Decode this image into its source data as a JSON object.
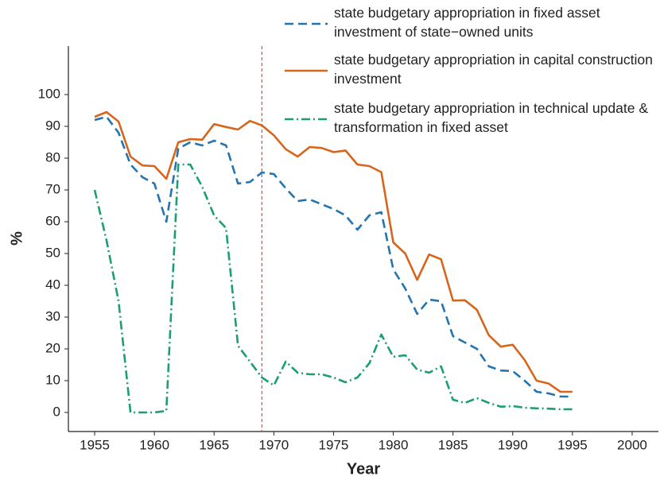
{
  "chart_data": {
    "type": "line",
    "xlabel": "Year",
    "ylabel": "%",
    "x": [
      1955,
      1956,
      1957,
      1958,
      1959,
      1960,
      1961,
      1962,
      1963,
      1964,
      1965,
      1966,
      1967,
      1968,
      1969,
      1970,
      1971,
      1972,
      1973,
      1974,
      1975,
      1976,
      1977,
      1978,
      1979,
      1980,
      1981,
      1982,
      1983,
      1984,
      1985,
      1986,
      1987,
      1988,
      1989,
      1990,
      1991,
      1992,
      1993,
      1994,
      1995
    ],
    "series": [
      {
        "name": "state budgetary appropriation in fixed asset investment of state−owned units",
        "color": "#2474b0",
        "dash": "dashed",
        "values": [
          92,
          93,
          88,
          78,
          74,
          72,
          60,
          83,
          85,
          84,
          85.5,
          84,
          72,
          72.5,
          75.5,
          75,
          70.5,
          66.5,
          67,
          65.5,
          64,
          62,
          57.5,
          62,
          63,
          45,
          39,
          31,
          35.5,
          35,
          24,
          22,
          20,
          14.5,
          13.2,
          13,
          10,
          6.5,
          6,
          5,
          5
        ]
      },
      {
        "name": "state budgetary appropriation in capital construction investment",
        "color": "#d7661c",
        "dash": "solid",
        "values": [
          93,
          94.5,
          91.5,
          80.5,
          77.7,
          77.5,
          73.5,
          85,
          86,
          85.8,
          90.7,
          89.8,
          89,
          91.7,
          90.3,
          87.2,
          82.8,
          80.5,
          83.5,
          83.2,
          81.9,
          82.4,
          78,
          77.5,
          75.6,
          53.5,
          50,
          41.7,
          49.7,
          48.2,
          35.2,
          35.3,
          32.3,
          24.3,
          20.7,
          21.3,
          16.5,
          10,
          9.1,
          6.5,
          6.5
        ]
      },
      {
        "name": "state budgetary appropriation in technical update & transformation in fixed asset",
        "color": "#1b9e77",
        "dash": "dashdot",
        "values": [
          70,
          54,
          35,
          0,
          0,
          0,
          0.5,
          78,
          78,
          71,
          62,
          58,
          21,
          16,
          11,
          8.5,
          16,
          12.5,
          12,
          12,
          11,
          9.5,
          11,
          15.5,
          24.5,
          17.5,
          18,
          13.5,
          12.5,
          14.5,
          4,
          3,
          4.5,
          3,
          1.8,
          2,
          1.5,
          1.3,
          1.2,
          1,
          1
        ]
      }
    ],
    "vline": {
      "value": 1969,
      "color": "#e8474f"
    },
    "xlim": [
      1952.8,
      2002.2
    ],
    "xticks": [
      1955,
      1960,
      1965,
      1970,
      1975,
      1980,
      1985,
      1990,
      1995,
      2000
    ],
    "ylim": [
      -6,
      115.25
    ],
    "yticks": [
      0,
      10,
      20,
      30,
      40,
      50,
      60,
      70,
      80,
      90,
      100
    ],
    "legend": "upper right",
    "grid": false
  }
}
